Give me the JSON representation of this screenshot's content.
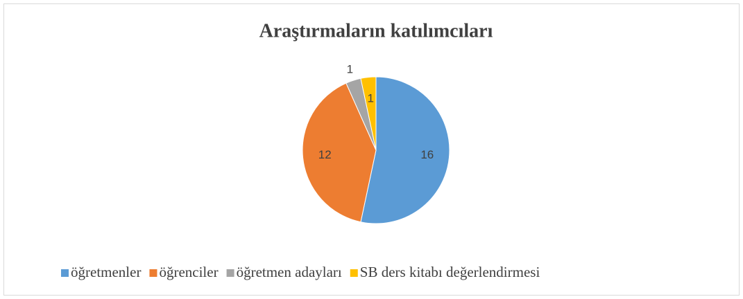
{
  "chart_data": {
    "type": "pie",
    "title": "Araştırmaların katılımcıları",
    "categories": [
      "öğretmenler",
      "öğrenciler",
      "öğretmen adayları",
      "SB ders kitabı değerlendirmesi"
    ],
    "values": [
      16,
      12,
      1,
      1
    ],
    "colors": [
      "#5b9bd5",
      "#ed7d31",
      "#a5a5a5",
      "#ffc000"
    ],
    "legend": "bottom"
  }
}
